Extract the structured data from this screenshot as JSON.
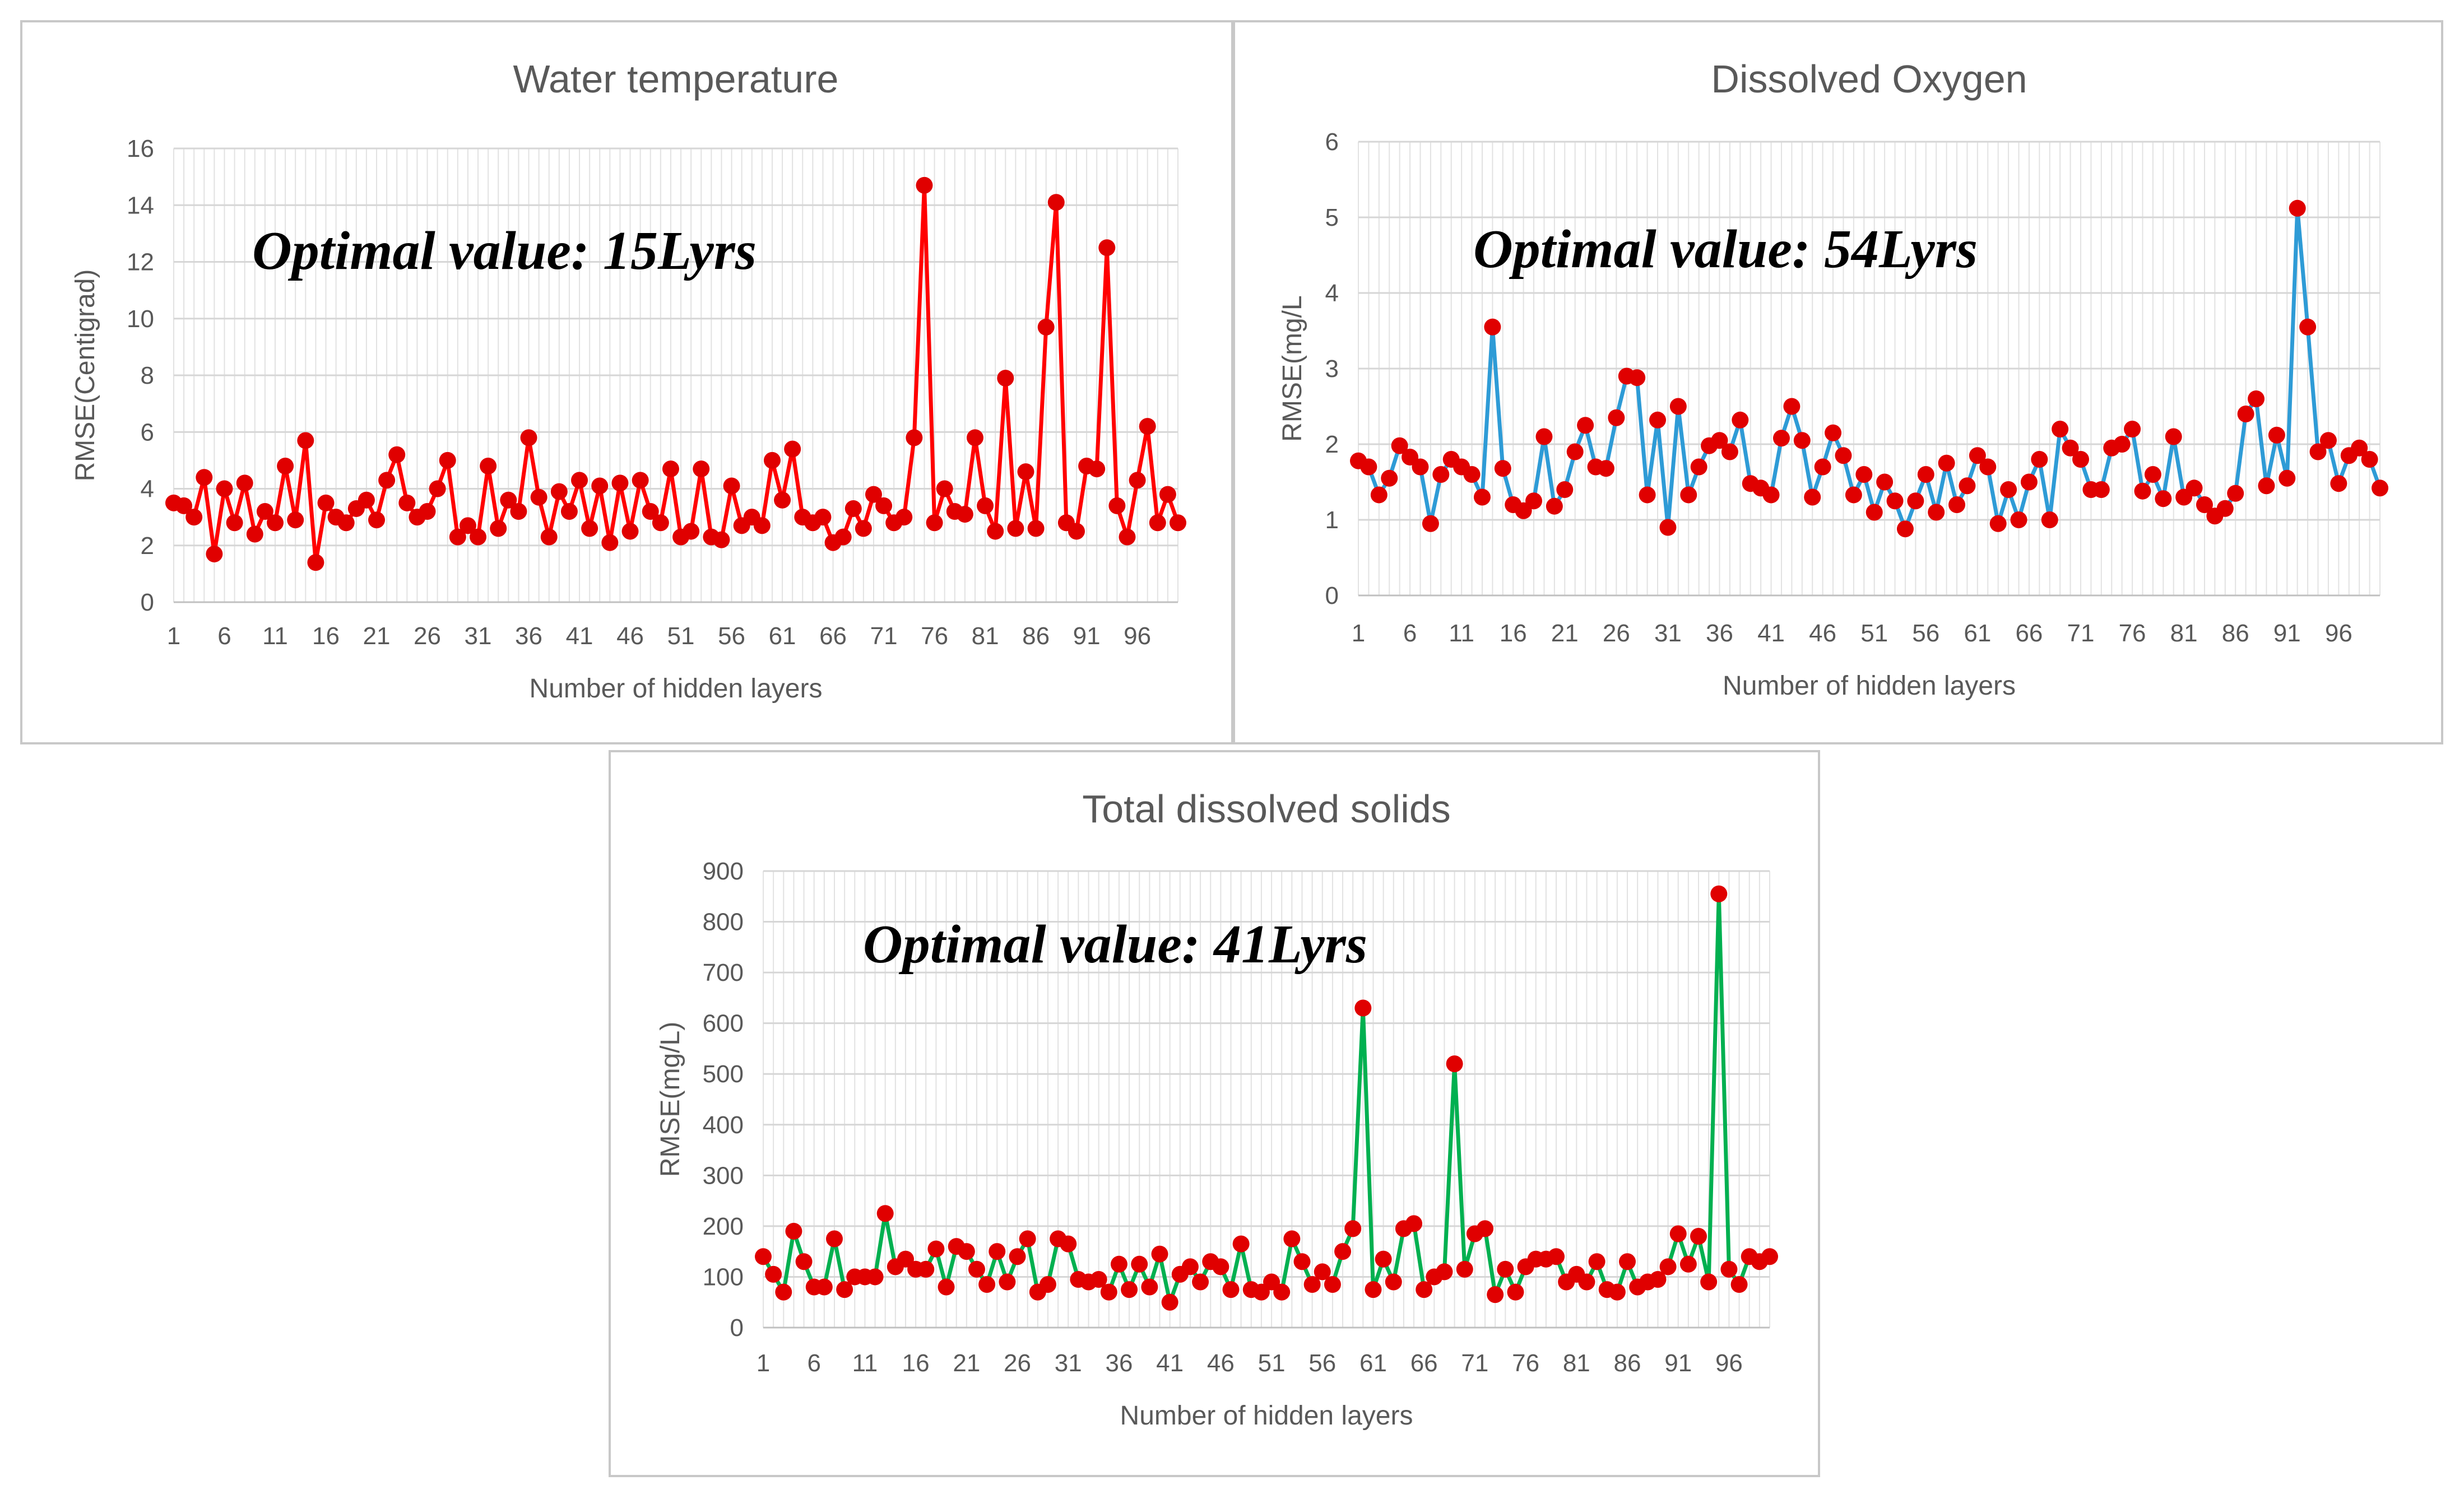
{
  "chart_data": [
    {
      "id": "wt",
      "type": "line",
      "title": "Water temperature",
      "xlabel": "Number  of hidden layers",
      "ylabel": "RMSE(Centigrad)",
      "annotation": "Optimal value: 15Lyrs",
      "ylim": [
        0,
        16
      ],
      "yticks": [
        "0",
        "2",
        "4",
        "6",
        "8",
        "10",
        "12",
        "14",
        "16"
      ],
      "xticks": [
        "1",
        "6",
        "11",
        "16",
        "21",
        "26",
        "31",
        "36",
        "41",
        "46",
        "51",
        "56",
        "61",
        "66",
        "71",
        "76",
        "81",
        "86",
        "91",
        "96"
      ],
      "x_start": 1,
      "grid": true,
      "line_color": "#ff0000",
      "marker_color": "#e00000",
      "values": [
        3.5,
        3.4,
        3.0,
        4.4,
        1.7,
        4.0,
        2.8,
        4.2,
        2.4,
        3.2,
        2.8,
        4.8,
        2.9,
        5.7,
        1.4,
        3.5,
        3.0,
        2.8,
        3.3,
        3.6,
        2.9,
        4.3,
        5.2,
        3.5,
        3.0,
        3.2,
        4.0,
        5.0,
        2.3,
        2.7,
        2.3,
        4.8,
        2.6,
        3.6,
        3.2,
        5.8,
        3.7,
        2.3,
        3.9,
        3.2,
        4.3,
        2.6,
        4.1,
        2.1,
        4.2,
        2.5,
        4.3,
        3.2,
        2.8,
        4.7,
        2.3,
        2.5,
        4.7,
        2.3,
        2.2,
        4.1,
        2.7,
        3.0,
        2.7,
        5.0,
        3.6,
        5.4,
        3.0,
        2.8,
        3.0,
        2.1,
        2.3,
        3.3,
        2.6,
        3.8,
        3.4,
        2.8,
        3.0,
        5.8,
        14.7,
        2.8,
        4.0,
        3.2,
        3.1,
        5.8,
        3.4,
        2.5,
        7.9,
        2.6,
        4.6,
        2.6,
        9.7,
        14.1,
        2.8,
        2.5,
        4.8,
        4.7,
        12.5,
        3.4,
        2.3,
        4.3,
        6.2,
        2.8,
        3.8,
        2.8
      ]
    },
    {
      "id": "do",
      "type": "line",
      "title": "Dissolved Oxygen",
      "xlabel": "Number  of hidden layers",
      "ylabel": "RMSE(mg/L",
      "annotation": "Optimal value: 54Lyrs",
      "ylim": [
        0,
        6
      ],
      "yticks": [
        "0",
        "1",
        "2",
        "3",
        "4",
        "5",
        "6"
      ],
      "xticks": [
        "1",
        "6",
        "11",
        "16",
        "21",
        "26",
        "31",
        "36",
        "41",
        "46",
        "51",
        "56",
        "61",
        "66",
        "71",
        "76",
        "81",
        "86",
        "91",
        "96"
      ],
      "x_start": 1,
      "grid": true,
      "line_color": "#2e9bd6",
      "marker_color": "#e00000",
      "values": [
        1.78,
        1.7,
        1.33,
        1.55,
        1.98,
        1.83,
        1.7,
        0.95,
        1.6,
        1.8,
        1.7,
        1.6,
        1.3,
        3.55,
        1.68,
        1.2,
        1.12,
        1.25,
        2.1,
        1.18,
        1.4,
        1.9,
        2.25,
        1.7,
        1.68,
        2.35,
        2.9,
        2.88,
        1.33,
        2.32,
        0.9,
        2.5,
        1.33,
        1.7,
        1.98,
        2.05,
        1.9,
        2.32,
        1.48,
        1.42,
        1.33,
        2.08,
        2.5,
        2.05,
        1.3,
        1.7,
        2.15,
        1.85,
        1.33,
        1.6,
        1.1,
        1.5,
        1.25,
        0.88,
        1.25,
        1.6,
        1.1,
        1.75,
        1.2,
        1.45,
        1.85,
        1.7,
        0.95,
        1.4,
        1.0,
        1.5,
        1.8,
        1.0,
        2.2,
        1.95,
        1.8,
        1.4,
        1.4,
        1.95,
        2.0,
        2.2,
        1.38,
        1.6,
        1.28,
        2.1,
        1.3,
        1.42,
        1.2,
        1.05,
        1.15,
        1.35,
        2.4,
        2.6,
        1.45,
        2.12,
        1.55,
        5.12,
        3.55,
        1.9,
        2.05,
        1.48,
        1.85,
        1.95,
        1.8,
        1.42
      ]
    },
    {
      "id": "tds",
      "type": "line",
      "title": "Total dissolved solids",
      "xlabel": "Number  of hidden layers",
      "ylabel": "RMSE(mg/L)",
      "annotation": "Optimal value: 41Lyrs",
      "ylim": [
        0,
        900
      ],
      "yticks": [
        "0",
        "100",
        "200",
        "300",
        "400",
        "500",
        "600",
        "700",
        "800",
        "900"
      ],
      "xticks": [
        "1",
        "6",
        "11",
        "16",
        "21",
        "26",
        "31",
        "36",
        "41",
        "46",
        "51",
        "56",
        "61",
        "66",
        "71",
        "76",
        "81",
        "86",
        "91",
        "96"
      ],
      "x_start": 1,
      "grid": true,
      "line_color": "#00b050",
      "marker_color": "#e00000",
      "values": [
        140,
        105,
        70,
        190,
        130,
        80,
        80,
        175,
        75,
        100,
        100,
        100,
        225,
        120,
        135,
        115,
        115,
        155,
        80,
        160,
        150,
        115,
        85,
        150,
        90,
        140,
        175,
        70,
        85,
        175,
        165,
        95,
        90,
        95,
        70,
        125,
        75,
        125,
        80,
        145,
        50,
        105,
        120,
        90,
        130,
        120,
        75,
        165,
        75,
        70,
        90,
        70,
        175,
        130,
        85,
        110,
        85,
        150,
        195,
        630,
        75,
        135,
        90,
        195,
        205,
        75,
        100,
        110,
        520,
        115,
        185,
        195,
        65,
        115,
        70,
        120,
        135,
        135,
        140,
        90,
        105,
        90,
        130,
        75,
        70,
        130,
        80,
        90,
        95,
        120,
        185,
        125,
        180,
        90,
        855,
        115,
        85,
        140,
        130,
        140
      ]
    }
  ]
}
